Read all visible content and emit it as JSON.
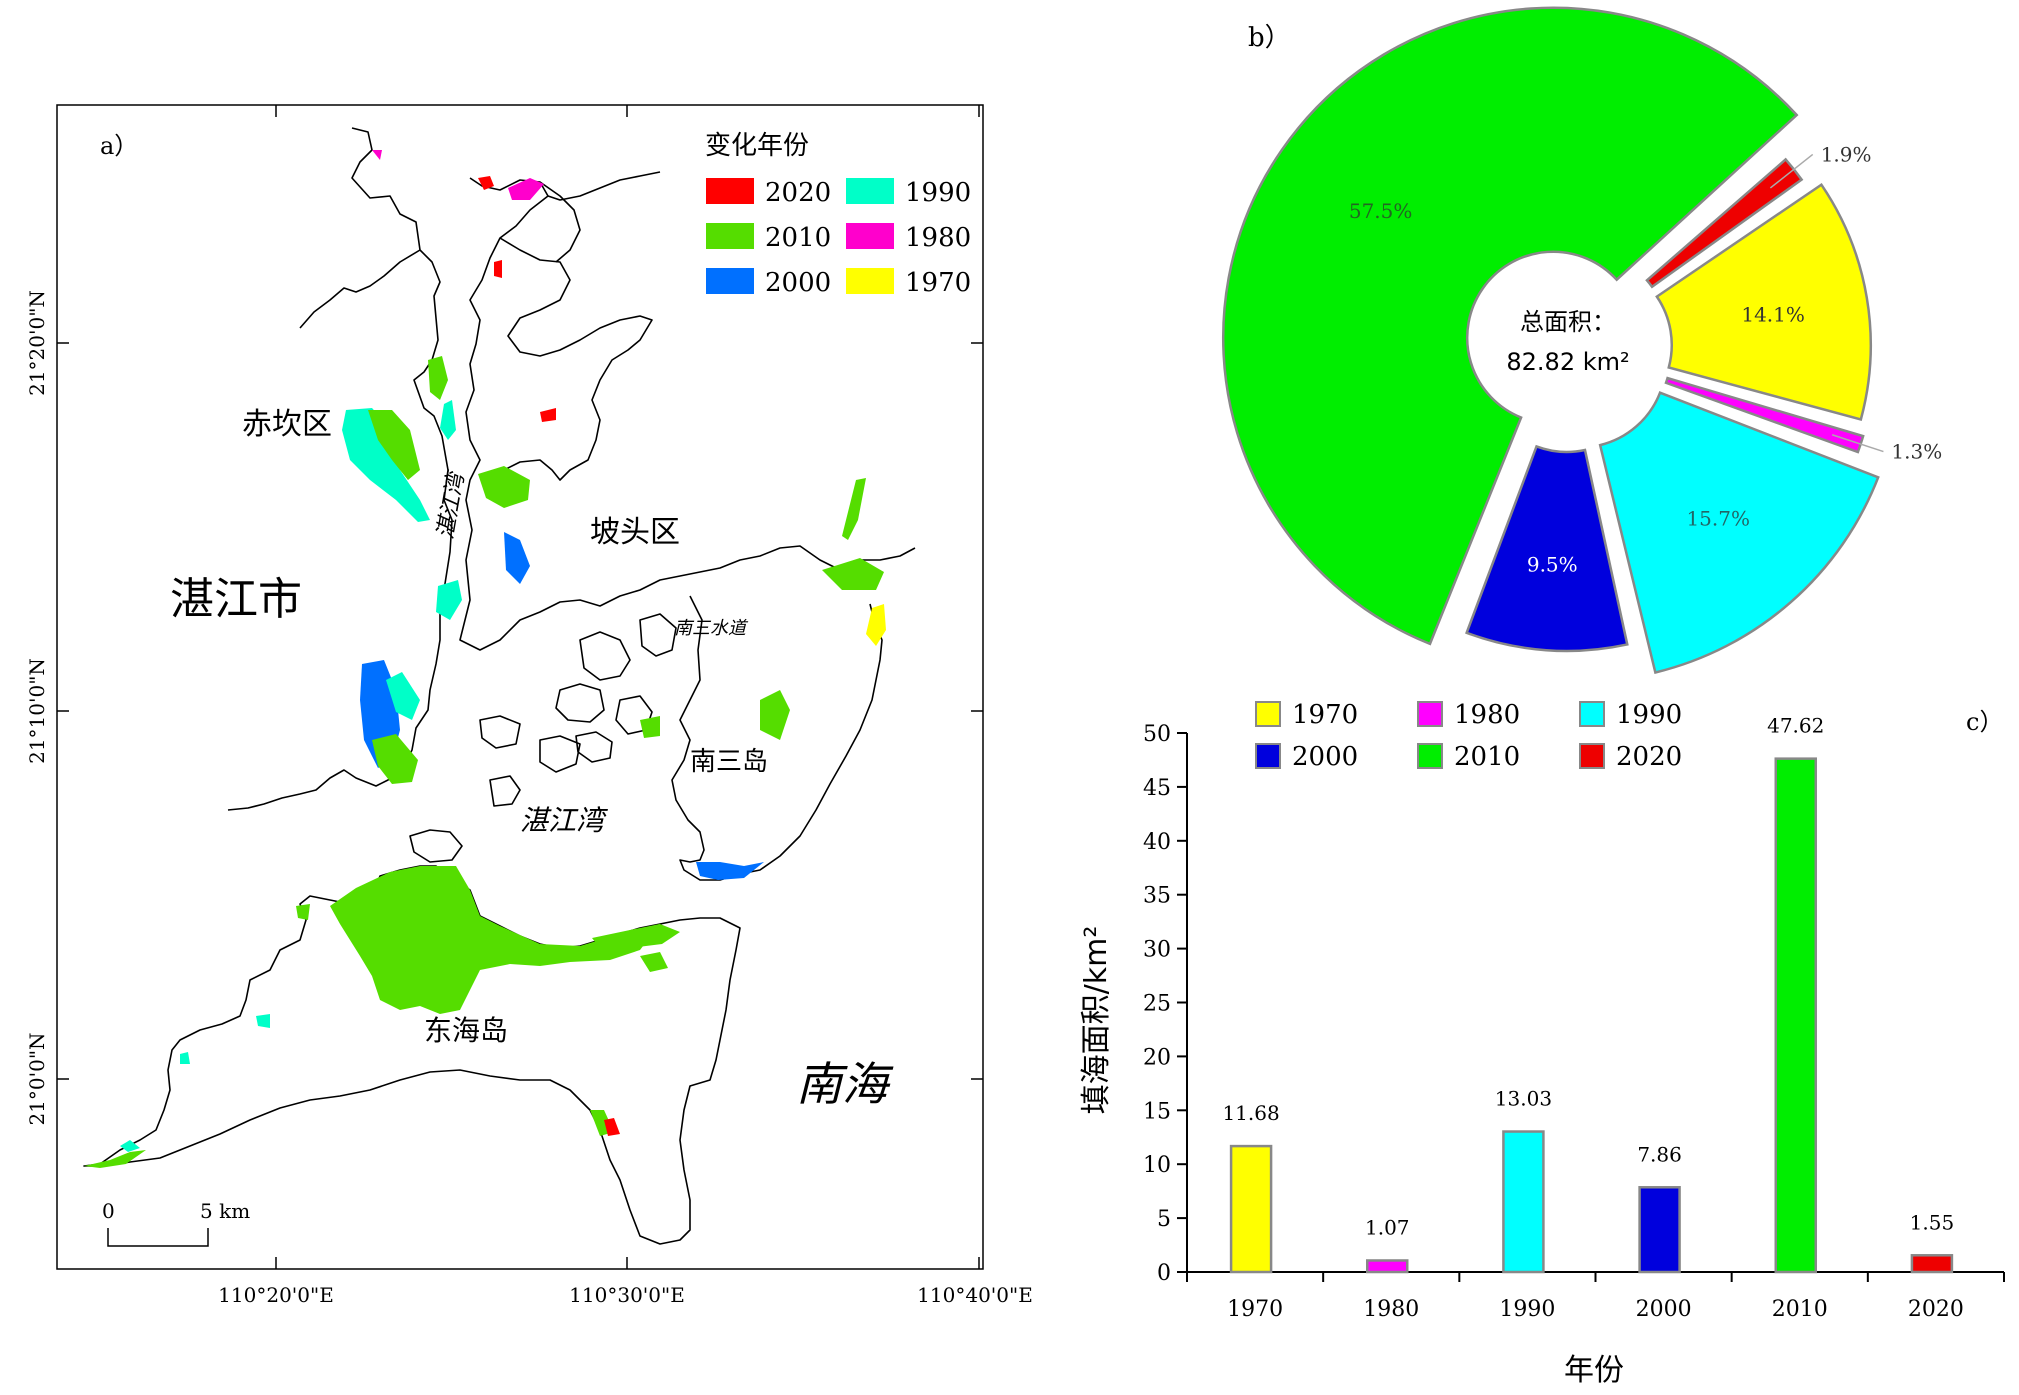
{
  "panel_a": {
    "label": "a）",
    "legend_title": "变化年份",
    "legend": [
      {
        "year": "2020",
        "color": "#ff0000"
      },
      {
        "year": "1990",
        "color": "#00ffc8"
      },
      {
        "year": "2010",
        "color": "#55dd00"
      },
      {
        "year": "1980",
        "color": "#ff00cc"
      },
      {
        "year": "2000",
        "color": "#0070ff"
      },
      {
        "year": "1970",
        "color": "#ffff00"
      }
    ],
    "places": {
      "chikan": "赤坎区",
      "zhanjiang_city": "湛江市",
      "potou": "坡头区",
      "zhanjiang_bay_channel": "湛江湾",
      "nansan_waterway": "南三水道",
      "nansan_island": "南三岛",
      "zhanjiang_bay": "湛江湾",
      "donghai_island": "东海岛",
      "south_sea": "南海"
    },
    "lat_ticks": [
      "21°20'0\"N",
      "21°10'0\"N",
      "21°0'0\"N"
    ],
    "lon_ticks": [
      "110°20'0\"E",
      "110°30'0\"E",
      "110°40'0\"E"
    ],
    "scale": {
      "zero": "0",
      "five": "5 km"
    }
  },
  "panel_b": {
    "label": "b）",
    "center_title": "总面积：",
    "center_value": "82.82 km²"
  },
  "panel_c": {
    "label": "c）",
    "xlabel": "年份",
    "ylabel": "填海面积/km²"
  },
  "chart_data": [
    {
      "type": "pie",
      "panel": "b",
      "center_label": "总面积：82.82 km²",
      "slices": [
        {
          "year": "2010",
          "percent": 57.5,
          "label": "57.5%",
          "color": "#00ee00"
        },
        {
          "year": "2020",
          "percent": 1.9,
          "label": "1.9%",
          "color": "#ee0000"
        },
        {
          "year": "1970",
          "percent": 14.1,
          "label": "14.1%",
          "color": "#ffff00"
        },
        {
          "year": "1980",
          "percent": 1.3,
          "label": "1.3%",
          "color": "#ff00ff"
        },
        {
          "year": "1990",
          "percent": 15.7,
          "label": "15.7%",
          "color": "#00ffff"
        },
        {
          "year": "2000",
          "percent": 9.5,
          "label": "9.5%",
          "color": "#0000dd"
        }
      ]
    },
    {
      "type": "bar",
      "panel": "c",
      "categories": [
        "1970",
        "1980",
        "1990",
        "2000",
        "2010",
        "2020"
      ],
      "values": [
        11.68,
        1.07,
        13.03,
        7.86,
        47.62,
        1.55
      ],
      "value_labels": [
        "11.68",
        "1.07",
        "13.03",
        "7.86",
        "47.62",
        "1.55"
      ],
      "colors": [
        "#ffff00",
        "#ff00ff",
        "#00ffff",
        "#0000dd",
        "#00ee00",
        "#ee0000"
      ],
      "legend": [
        "1970",
        "1980",
        "1990",
        "2000",
        "2010",
        "2020"
      ],
      "xlabel": "年份",
      "ylabel": "填海面积/km²",
      "ylim": [
        0,
        50
      ],
      "yticks": [
        "0",
        "5",
        "10",
        "15",
        "20",
        "25",
        "30",
        "35",
        "40",
        "45",
        "50"
      ]
    }
  ]
}
